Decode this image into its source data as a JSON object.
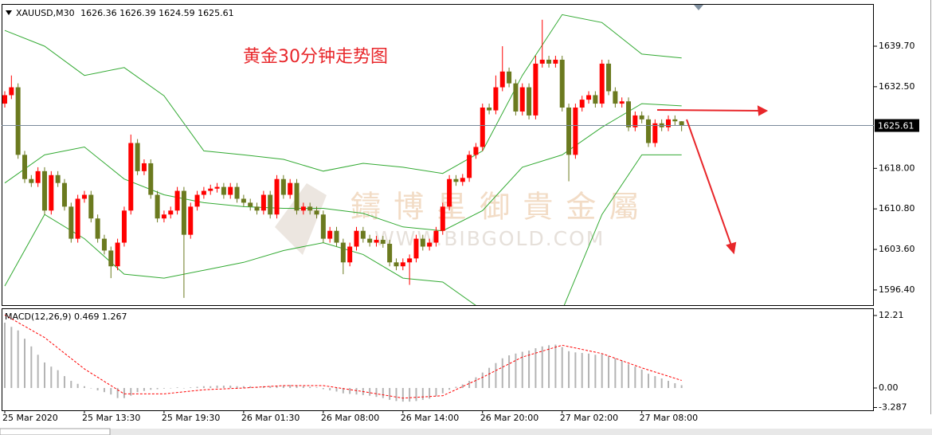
{
  "chart_data": [
    {
      "type": "candlestick",
      "symbol": "XAUUSD,M30",
      "annotation": "黄金30分钟走势图",
      "watermark": {
        "text": "鑄 博 星 御 貴 金 屬",
        "url": "WWW.BIBGOLD.COM"
      },
      "up_color": "#ff0000",
      "down_color": "#6b7a1f",
      "grid": false,
      "categories": [
        "25 Mar 2020",
        null,
        null,
        null,
        null,
        null,
        null,
        null,
        null,
        null,
        null,
        null,
        "25 Mar 13:30",
        null,
        null,
        null,
        null,
        null,
        null,
        null,
        null,
        null,
        null,
        null,
        "25 Mar 19:30",
        null,
        null,
        null,
        null,
        null,
        null,
        null,
        null,
        null,
        null,
        null,
        "26 Mar 01:30",
        null,
        null,
        null,
        null,
        null,
        null,
        null,
        null,
        null,
        null,
        null,
        "26 Mar 08:00",
        null,
        null,
        null,
        null,
        null,
        null,
        null,
        null,
        null,
        null,
        null,
        "26 Mar 14:00",
        null,
        null,
        null,
        null,
        null,
        null,
        null,
        null,
        null,
        null,
        null,
        "26 Mar 20:00",
        null,
        null,
        null,
        null,
        null,
        null,
        null,
        null,
        null,
        null,
        null,
        "27 Mar 02:00",
        null,
        null,
        null,
        null,
        null,
        null,
        null,
        null,
        null,
        null,
        null,
        "27 Mar 08:00",
        null,
        null,
        null,
        null,
        null,
        null
      ],
      "open": [
        1629.5,
        1631.0,
        1632.4,
        1620.4,
        1616.1,
        1615.4,
        1617.5,
        1610.5,
        1616.8,
        1615.4,
        1611.2,
        1605.5,
        1612.6,
        1613.3,
        1609.1,
        1605.5,
        1603.4,
        1600.6,
        1604.8,
        1610.5,
        1622.5,
        1617.5,
        1618.9,
        1613.3,
        1609.1,
        1609.8,
        1610.5,
        1614.0,
        1606.2,
        1611.2,
        1613.3,
        1614.0,
        1614.4,
        1614.7,
        1613.3,
        1614.7,
        1612.6,
        1611.9,
        1611.2,
        1610.5,
        1613.3,
        1609.8,
        1616.1,
        1613.3,
        1615.4,
        1610.5,
        1611.2,
        1610.5,
        1609.8,
        1605.5,
        1606.9,
        1604.8,
        1601.3,
        1604.1,
        1606.9,
        1605.5,
        1604.8,
        1605.3,
        1604.6,
        1601.3,
        1600.6,
        1601.3,
        1602.0,
        1605.5,
        1604.1,
        1604.8,
        1606.9,
        1611.2,
        1616.1,
        1615.6,
        1616.3,
        1620.4,
        1621.8,
        1628.8,
        1628.3,
        1632.4,
        1635.2,
        1633.1,
        1628.1,
        1632.4,
        1627.4,
        1636.6,
        1637.3,
        1636.6,
        1637.3,
        1628.8,
        1620.4,
        1628.8,
        1630.2,
        1631.0,
        1629.5,
        1636.6,
        1631.7,
        1629.5,
        1629.9,
        1625.3,
        1627.4,
        1626.7,
        1622.5,
        1626.0,
        1625.3,
        1626.7,
        1626.36
      ],
      "high": [
        1631.7,
        1634.5,
        1633.1,
        1621.1,
        1616.8,
        1618.2,
        1618.2,
        1617.5,
        1617.5,
        1616.1,
        1611.9,
        1613.3,
        1614.0,
        1614.0,
        1609.8,
        1606.2,
        1604.1,
        1605.5,
        1611.2,
        1624.0,
        1623.2,
        1619.6,
        1619.6,
        1614.0,
        1610.5,
        1611.2,
        1614.7,
        1614.7,
        1611.9,
        1614.0,
        1614.7,
        1615.1,
        1615.4,
        1615.4,
        1615.4,
        1615.4,
        1613.3,
        1612.6,
        1611.9,
        1614.0,
        1614.0,
        1616.8,
        1616.8,
        1616.1,
        1616.1,
        1611.9,
        1611.9,
        1611.2,
        1610.5,
        1607.6,
        1607.6,
        1605.5,
        1604.8,
        1607.6,
        1607.6,
        1606.2,
        1606.0,
        1606.0,
        1605.3,
        1602.0,
        1602.0,
        1602.7,
        1606.2,
        1606.2,
        1605.5,
        1607.6,
        1611.9,
        1616.8,
        1616.8,
        1617.0,
        1621.1,
        1622.5,
        1629.5,
        1629.5,
        1634.5,
        1639.7,
        1635.9,
        1633.8,
        1633.1,
        1633.1,
        1638.0,
        1644.4,
        1638.0,
        1638.0,
        1638.0,
        1629.5,
        1629.5,
        1630.9,
        1631.7,
        1631.7,
        1637.3,
        1637.3,
        1632.4,
        1630.6,
        1630.6,
        1628.1,
        1628.1,
        1627.4,
        1626.7,
        1626.7,
        1627.4,
        1627.4,
        1626.39
      ],
      "low": [
        1628.8,
        1630.3,
        1619.7,
        1615.4,
        1614.7,
        1614.7,
        1609.8,
        1609.8,
        1614.7,
        1610.5,
        1604.8,
        1604.8,
        1611.9,
        1608.4,
        1604.8,
        1602.7,
        1598.5,
        1599.9,
        1604.1,
        1609.8,
        1616.8,
        1616.8,
        1612.6,
        1608.4,
        1608.4,
        1609.1,
        1609.8,
        1595.0,
        1605.5,
        1610.5,
        1612.6,
        1613.3,
        1613.7,
        1612.6,
        1612.6,
        1611.9,
        1611.2,
        1610.5,
        1609.8,
        1609.8,
        1609.1,
        1609.1,
        1612.6,
        1612.6,
        1609.8,
        1609.8,
        1609.8,
        1609.1,
        1604.8,
        1604.8,
        1604.1,
        1599.2,
        1600.6,
        1603.4,
        1604.8,
        1604.1,
        1604.1,
        1603.9,
        1600.6,
        1599.9,
        1599.9,
        1597.3,
        1601.3,
        1603.4,
        1603.4,
        1604.1,
        1606.2,
        1610.5,
        1614.9,
        1614.9,
        1615.6,
        1619.7,
        1621.1,
        1627.6,
        1627.6,
        1631.7,
        1632.4,
        1627.4,
        1627.4,
        1626.7,
        1626.7,
        1635.9,
        1635.9,
        1635.9,
        1628.1,
        1615.7,
        1619.7,
        1628.1,
        1629.5,
        1628.8,
        1628.8,
        1631.0,
        1628.8,
        1628.8,
        1624.6,
        1624.6,
        1626.0,
        1621.8,
        1621.8,
        1624.6,
        1624.6,
        1625.6,
        1624.59
      ],
      "close": [
        1631.0,
        1632.4,
        1620.4,
        1616.1,
        1615.4,
        1617.5,
        1610.5,
        1616.8,
        1615.4,
        1611.2,
        1605.5,
        1612.6,
        1613.3,
        1609.1,
        1605.5,
        1603.4,
        1600.6,
        1604.8,
        1610.5,
        1622.5,
        1617.5,
        1618.9,
        1613.3,
        1609.1,
        1609.8,
        1610.5,
        1614.0,
        1606.2,
        1611.2,
        1613.3,
        1614.0,
        1614.4,
        1614.7,
        1613.3,
        1614.7,
        1612.6,
        1611.9,
        1611.2,
        1610.5,
        1613.3,
        1609.8,
        1616.1,
        1613.3,
        1615.4,
        1610.5,
        1611.2,
        1610.5,
        1609.8,
        1605.5,
        1606.9,
        1604.8,
        1601.3,
        1604.1,
        1606.9,
        1605.5,
        1604.8,
        1605.3,
        1604.6,
        1601.3,
        1600.6,
        1601.3,
        1602.0,
        1605.5,
        1604.1,
        1604.8,
        1606.9,
        1611.2,
        1616.1,
        1615.6,
        1616.3,
        1620.4,
        1621.8,
        1628.8,
        1628.3,
        1632.4,
        1635.2,
        1633.1,
        1628.1,
        1632.4,
        1627.4,
        1636.6,
        1637.3,
        1636.6,
        1637.3,
        1628.8,
        1620.4,
        1628.8,
        1630.2,
        1631.0,
        1629.5,
        1636.6,
        1631.7,
        1629.5,
        1629.9,
        1625.3,
        1627.4,
        1626.7,
        1622.5,
        1626.0,
        1625.3,
        1626.7,
        1626.36,
        1625.61
      ],
      "bands": {
        "color": "#33aa33",
        "x": [
          0,
          6,
          12,
          18,
          24,
          30,
          36,
          42,
          48,
          54,
          60,
          66,
          72,
          78,
          84,
          90,
          96,
          102
        ],
        "upper": [
          1642.5,
          1639.7,
          1634.5,
          1635.9,
          1630.9,
          1621.1,
          1620.4,
          1619.6,
          1617.5,
          1618.9,
          1618.2,
          1617.1,
          1621.1,
          1634.5,
          1645.3,
          1643.9,
          1638.3,
          1637.6
        ],
        "middle": [
          1615.4,
          1620.4,
          1621.8,
          1616.1,
          1613.3,
          1611.9,
          1611.2,
          1610.9,
          1610.9,
          1610.0,
          1607.6,
          1606.9,
          1610.5,
          1618.2,
          1620.4,
          1625.3,
          1629.5,
          1629.1
        ],
        "lower": [
          1597.1,
          1609.8,
          1605.5,
          1599.2,
          1598.5,
          1599.9,
          1601.3,
          1603.4,
          1604.8,
          1602.7,
          1598.5,
          1597.8,
          1592.8,
          1588.6,
          1592.8,
          1609.8,
          1620.4,
          1620.4
        ]
      },
      "ylim": [
        1593.7,
        1647.2
      ],
      "yticks": [
        {
          "value": 1596.4,
          "label": "1596.40"
        },
        {
          "value": 1603.6,
          "label": "1603.60"
        },
        {
          "value": 1610.8,
          "label": "1610.80"
        },
        {
          "value": 1618,
          "label": "1618.00"
        },
        {
          "value": 1632.5,
          "label": "1632.50"
        },
        {
          "value": 1639.7,
          "label": "1639.70"
        }
      ]
    },
    {
      "type": "macd",
      "name": "MACD(12,26,9)",
      "color": "#b4b4b4",
      "values": [
        11.0,
        10.3,
        9.7,
        8.3,
        7.0,
        5.6,
        4.3,
        3.6,
        3.0,
        2.0,
        1.2,
        0.7,
        0.3,
        0.0,
        -0.4,
        -0.7,
        -1.1,
        -1.7,
        -1.7,
        -1.3,
        -0.7,
        -0.5,
        -0.3,
        -0.2,
        -0.1,
        0.0,
        0.1,
        0.0,
        0.1,
        0.2,
        0.3,
        0.3,
        0.4,
        0.4,
        0.4,
        0.3,
        0.3,
        0.3,
        0.2,
        0.3,
        0.3,
        0.4,
        0.4,
        0.5,
        0.4,
        0.3,
        0.2,
        0.1,
        -0.2,
        -0.4,
        -0.6,
        -0.9,
        -1.0,
        -1.1,
        -1.2,
        -1.3,
        -1.5,
        -1.7,
        -2.0,
        -2.2,
        -2.3,
        -2.3,
        -2.2,
        -2.0,
        -1.8,
        -1.4,
        -0.9,
        -0.3,
        0.2,
        0.6,
        1.2,
        1.8,
        2.6,
        3.4,
        4.2,
        5.0,
        5.5,
        5.8,
        6.1,
        6.3,
        6.7,
        7.0,
        7.2,
        7.3,
        6.9,
        6.2,
        6.0,
        5.9,
        5.8,
        5.6,
        5.7,
        5.4,
        5.0,
        4.6,
        4.0,
        3.6,
        3.1,
        2.4,
        2.0,
        1.6,
        1.2,
        0.8,
        0.469
      ],
      "signal": {
        "color": "#ff0000",
        "x": [
          0,
          6,
          12,
          18,
          24,
          30,
          36,
          42,
          48,
          54,
          60,
          66,
          72,
          78,
          84,
          90,
          96,
          102
        ],
        "values": [
          12.3,
          8.5,
          3.2,
          -1.0,
          -1.0,
          -0.3,
          0.0,
          0.4,
          0.4,
          -0.6,
          -1.7,
          -1.3,
          1.8,
          5.2,
          7.2,
          5.8,
          3.4,
          1.267
        ]
      },
      "ylim": [
        -3.76,
        13.42
      ],
      "yticks": [
        -3.287,
        {
          "value": 0,
          "label": "0.00"
        },
        12.21
      ]
    }
  ]
}
